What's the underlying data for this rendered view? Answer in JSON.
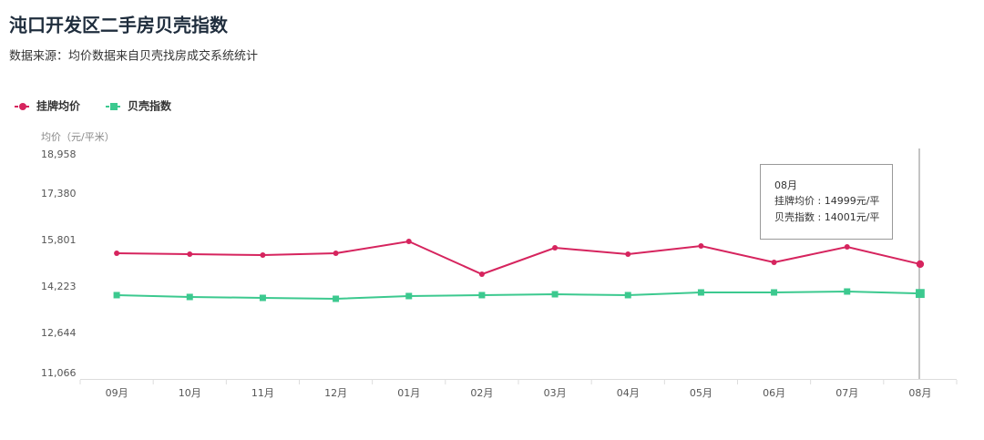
{
  "chart_data": {
    "type": "line",
    "title": "沌口开发区二手房贝壳指数",
    "subtitle": "数据来源：均价数据来自贝壳找房成交系统统计",
    "y_axis_label": "均价（元/平米）",
    "categories": [
      "09月",
      "10月",
      "11月",
      "12月",
      "01月",
      "02月",
      "03月",
      "04月",
      "05月",
      "06月",
      "07月",
      "08月"
    ],
    "series": [
      {
        "name": "挂牌均价",
        "color": "#d6245e",
        "marker": "circle",
        "values": [
          15368,
          15337,
          15306,
          15368,
          15770,
          14656,
          15553,
          15337,
          15615,
          15058,
          15584,
          14999
        ]
      },
      {
        "name": "贝壳指数",
        "color": "#3cc98f",
        "marker": "square",
        "values": [
          13945,
          13883,
          13852,
          13821,
          13914,
          13945,
          13975,
          13945,
          14037,
          14037,
          14068,
          14001
        ]
      }
    ],
    "ylim": [
      11066,
      18958
    ],
    "yticks": [
      {
        "value": 11066,
        "label": "11,066"
      },
      {
        "value": 12644,
        "label": "12,644"
      },
      {
        "value": 14223,
        "label": "14,223"
      },
      {
        "value": 15801,
        "label": "15,801"
      },
      {
        "value": 17380,
        "label": "17,380"
      },
      {
        "value": 18958,
        "label": "18,958"
      }
    ],
    "grid": false,
    "legend": "top-left",
    "tooltip": {
      "title": "08月",
      "lines": [
        "挂牌均价 : 14999元/平",
        "贝壳指数 : 14001元/平"
      ]
    }
  }
}
